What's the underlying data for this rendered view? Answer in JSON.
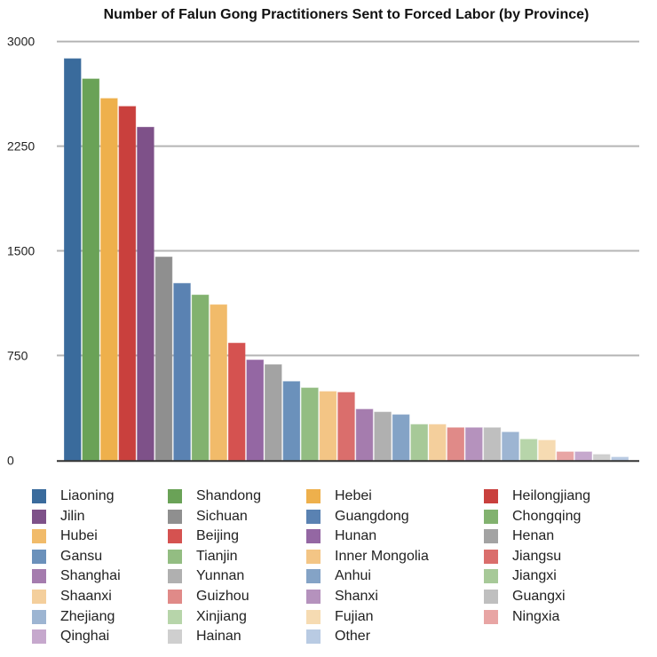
{
  "chart_data": {
    "type": "bar",
    "title": "Number of Falun Gong Practitioners Sent to Forced Labor (by Province)",
    "xlabel": "",
    "ylabel": "",
    "ylim": [
      0,
      3000
    ],
    "yticks": [
      0,
      750,
      1500,
      2250,
      3000
    ],
    "grid": true,
    "legend_placement": "bottom",
    "categories": [
      "Liaoning",
      "Shandong",
      "Hebei",
      "Heilongjiang",
      "Jilin",
      "Sichuan",
      "Guangdong",
      "Chongqing",
      "Hubei",
      "Beijing",
      "Hunan",
      "Henan",
      "Gansu",
      "Tianjin",
      "Inner Mongolia",
      "Jiangsu",
      "Shanghai",
      "Yunnan",
      "Anhui",
      "Jiangxi",
      "Shaanxi",
      "Guizhou",
      "Shanxi",
      "Guangxi",
      "Zhejiang",
      "Xinjiang",
      "Fujian",
      "Ningxia",
      "Qinghai",
      "Hainan",
      "Other"
    ],
    "values": [
      2876,
      2731,
      2591,
      2534,
      2385,
      1455,
      1266,
      1183,
      1113,
      838,
      717,
      684,
      563,
      517,
      491,
      485,
      364,
      344,
      325,
      255,
      255,
      232,
      232,
      232,
      200,
      149,
      142,
      59,
      59,
      40,
      21
    ],
    "colors": [
      "#3a6b9c",
      "#6aa257",
      "#eeb04c",
      "#c9403d",
      "#7e5189",
      "#8f8f8f",
      "#5a82b2",
      "#82b26f",
      "#f1bb6a",
      "#d55250",
      "#9467a3",
      "#a3a3a3",
      "#6b91bb",
      "#93bd82",
      "#f3c585",
      "#da6e6c",
      "#a57cae",
      "#b0b0b0",
      "#84a3c6",
      "#a7c998",
      "#f4cf9c",
      "#e08a88",
      "#b592bd",
      "#bfbfbf",
      "#9db5d2",
      "#b7d5aa",
      "#f6dbb2",
      "#e8a5a4",
      "#c6a8cd",
      "#cfcfcf",
      "#b9cbe3"
    ]
  }
}
